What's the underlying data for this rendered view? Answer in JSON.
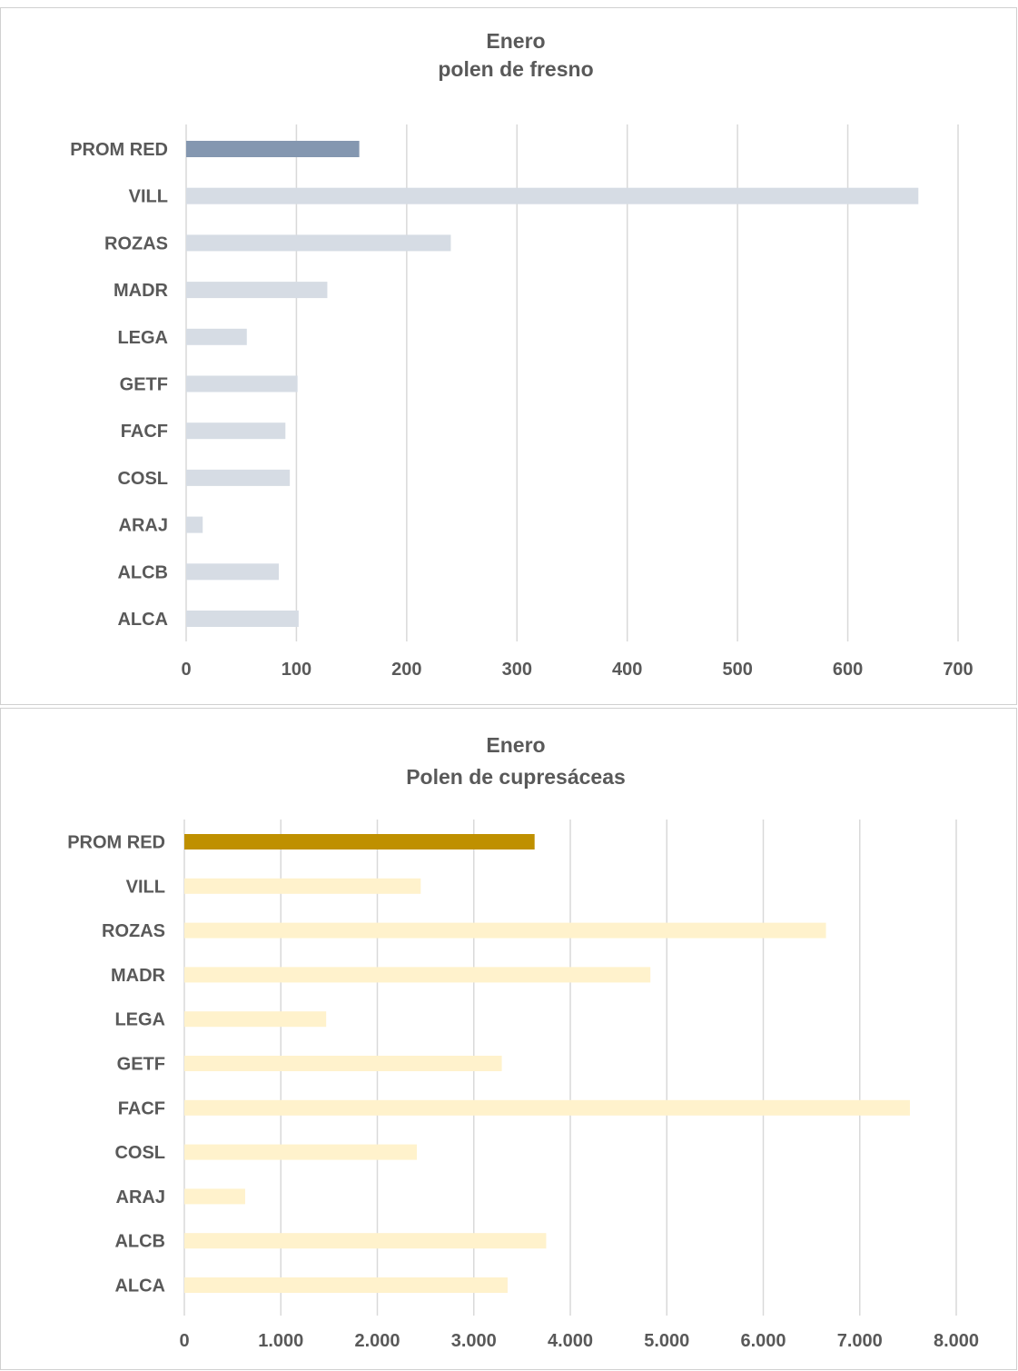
{
  "chart_data": [
    {
      "type": "bar",
      "orientation": "horizontal",
      "title_line1": "Enero",
      "title_line2": "polen de fresno",
      "categories": [
        "PROM RED",
        "VILL",
        "ROZAS",
        "MADR",
        "LEGA",
        "GETF",
        "FACF",
        "COSL",
        "ARAJ",
        "ALCB",
        "ALCA"
      ],
      "values": [
        157,
        664,
        240,
        128,
        55,
        101,
        90,
        94,
        15,
        84,
        102
      ],
      "xlim": [
        0,
        700
      ],
      "ticks": [
        0,
        100,
        200,
        300,
        400,
        500,
        600,
        700
      ],
      "tick_labels": [
        "0",
        "100",
        "200",
        "300",
        "400",
        "500",
        "600",
        "700"
      ],
      "highlight_color": "#8497b0",
      "bar_color": "#d6dce4",
      "grid": true
    },
    {
      "type": "bar",
      "orientation": "horizontal",
      "title_line1": "Enero",
      "title_line2": "Polen de cupresáceas",
      "categories": [
        "PROM RED",
        "VILL",
        "ROZAS",
        "MADR",
        "LEGA",
        "GETF",
        "FACF",
        "COSL",
        "ARAJ",
        "ALCB",
        "ALCA"
      ],
      "values": [
        3630,
        2450,
        6650,
        4830,
        1470,
        3290,
        7520,
        2410,
        630,
        3750,
        3350
      ],
      "xlim": [
        0,
        8000
      ],
      "ticks": [
        0,
        1000,
        2000,
        3000,
        4000,
        5000,
        6000,
        7000,
        8000
      ],
      "tick_labels": [
        "0",
        "1.000",
        "2.000",
        "3.000",
        "4.000",
        "5.000",
        "6.000",
        "7.000",
        "8.000"
      ],
      "highlight_color": "#bf9000",
      "bar_color": "#fff2cc",
      "grid": true
    }
  ]
}
